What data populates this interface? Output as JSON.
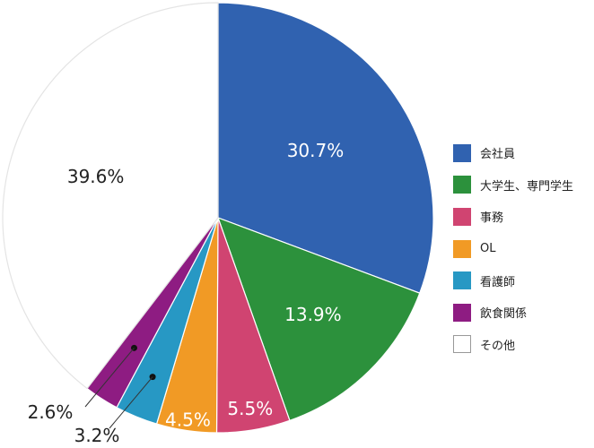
{
  "chart_data": {
    "type": "pie",
    "slices": [
      {
        "label": "会社員",
        "value": 30.7,
        "display": "30.7%",
        "color": "#3062B0"
      },
      {
        "label": "大学生、専門学生",
        "value": 13.9,
        "display": "13.9%",
        "color": "#2C913C"
      },
      {
        "label": "事務",
        "value": 5.5,
        "display": "5.5%",
        "color": "#D04471"
      },
      {
        "label": "OL",
        "value": 4.5,
        "display": "4.5%",
        "color": "#F19A25"
      },
      {
        "label": "看護師",
        "value": 3.2,
        "display": "3.2%",
        "color": "#2798C4"
      },
      {
        "label": "飲食関係",
        "value": 2.6,
        "display": "2.6%",
        "color": "#8E1C82"
      },
      {
        "label": "その他",
        "value": 39.6,
        "display": "39.6%",
        "color": "#FFFFFF"
      }
    ],
    "start_angle": "12 o'clock",
    "direction": "clockwise",
    "legend_position": "right"
  }
}
